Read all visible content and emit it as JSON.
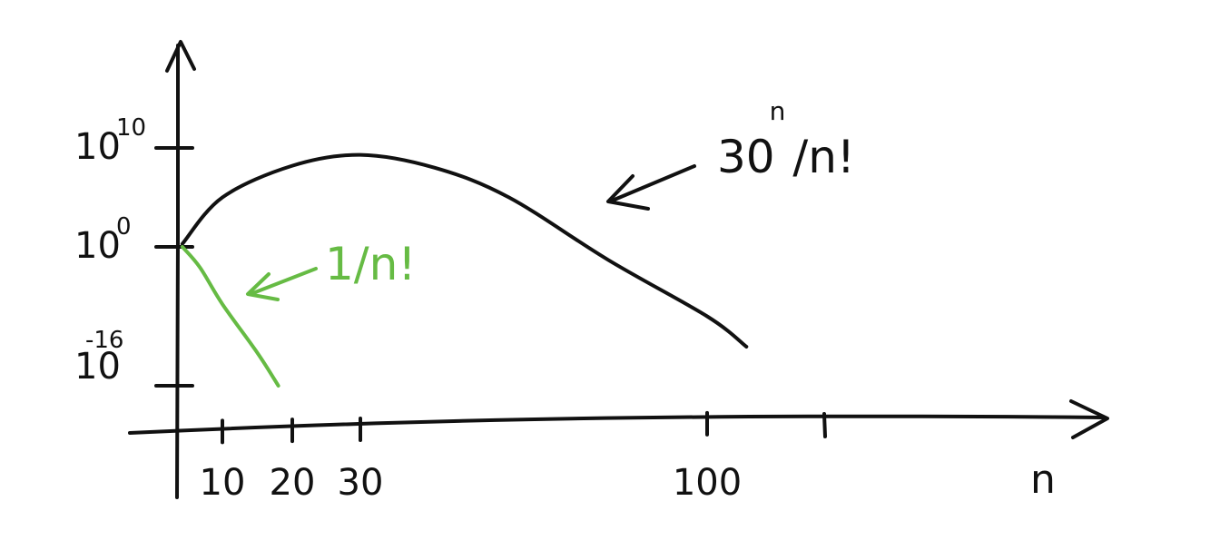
{
  "chart_data": {
    "type": "line",
    "title": "",
    "xlabel": "n",
    "ylabel": "",
    "y_scale": "log",
    "grid": false,
    "x_ticks": [
      {
        "value": 10,
        "label": "10"
      },
      {
        "value": 20,
        "label": "20"
      },
      {
        "value": 30,
        "label": "30"
      },
      {
        "value": 100,
        "label": "100"
      }
    ],
    "y_ticks": [
      {
        "exponent": 10,
        "base": "10",
        "sup": "10"
      },
      {
        "exponent": 0,
        "base": "10",
        "sup": "0"
      },
      {
        "exponent": -16,
        "base": "10",
        "sup": "-16"
      }
    ],
    "series": [
      {
        "color": "#111111",
        "annotation": {
          "base": "30",
          "sup": "n",
          "rest": "/n!"
        },
        "x": [
          1,
          10,
          20,
          30,
          45,
          60,
          80,
          100,
          110
        ],
        "y_log10": [
          0.3,
          5.0,
          8.2,
          9.3,
          8.0,
          5.0,
          -1.5,
          -8.0,
          -11.5
        ]
      },
      {
        "color": "#66bb44",
        "annotation": {
          "text": "1/n!"
        },
        "x": [
          1,
          5,
          10,
          15,
          18
        ],
        "y_log10": [
          0,
          -2.4,
          -6.6,
          -12.2,
          -16
        ]
      }
    ]
  }
}
